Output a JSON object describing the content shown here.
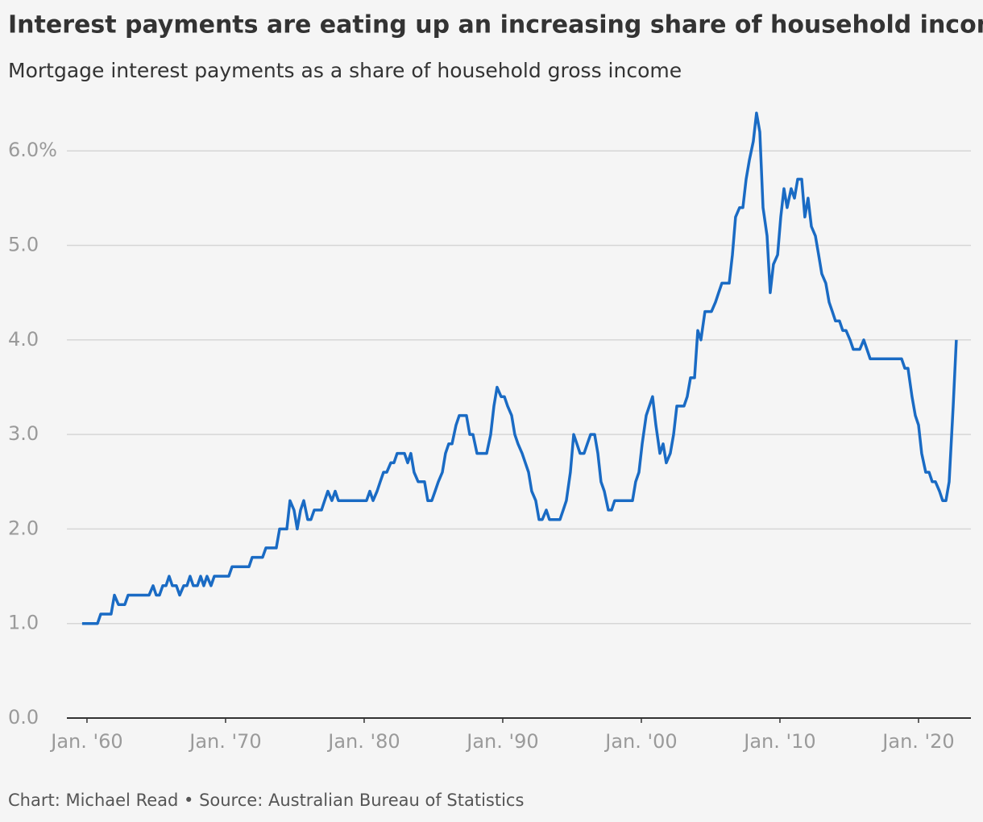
{
  "chart_data": {
    "type": "line",
    "title": "Interest payments are eating up an increasing share of household income",
    "subtitle": "Mortgage interest payments as a share of household gross income",
    "source": "Chart: Michael Read • Source: Australian Bureau of Statistics",
    "color": "#1a6bc4",
    "grid": true,
    "xlim": [
      1958.55,
      2023.78
    ],
    "ylim": [
      0,
      6.5
    ],
    "xticks": [
      {
        "value": 1960,
        "label": "Jan. '60"
      },
      {
        "value": 1970,
        "label": "Jan. '70"
      },
      {
        "value": 1980,
        "label": "Jan. '80"
      },
      {
        "value": 1990,
        "label": "Jan. '90"
      },
      {
        "value": 2000,
        "label": "Jan. '00"
      },
      {
        "value": 2010,
        "label": "Jan. '10"
      },
      {
        "value": 2020,
        "label": "Jan. '20"
      }
    ],
    "yticks": [
      {
        "value": 0,
        "label": "0.0"
      },
      {
        "value": 1,
        "label": "1.0"
      },
      {
        "value": 2,
        "label": "2.0"
      },
      {
        "value": 3,
        "label": "3.0"
      },
      {
        "value": 4,
        "label": "4.0"
      },
      {
        "value": 5,
        "label": "5.0"
      },
      {
        "value": 6,
        "label": "6.0%"
      }
    ],
    "x": [
      1959.65,
      1960.76,
      1960.99,
      1961.74,
      1961.98,
      1962.27,
      1962.73,
      1962.97,
      1964.48,
      1964.77,
      1965.0,
      1965.23,
      1965.47,
      1965.7,
      1965.93,
      1966.16,
      1966.45,
      1966.69,
      1966.98,
      1967.21,
      1967.44,
      1967.67,
      1967.97,
      1968.2,
      1968.43,
      1968.66,
      1968.95,
      1969.19,
      1970.23,
      1970.47,
      1971.69,
      1971.92,
      1972.67,
      1972.91,
      1973.66,
      1973.9,
      1974.42,
      1974.65,
      1974.94,
      1975.17,
      1975.41,
      1975.64,
      1975.93,
      1976.16,
      1976.4,
      1976.92,
      1977.15,
      1977.38,
      1977.67,
      1977.91,
      1978.14,
      1980.17,
      1980.41,
      1980.64,
      1980.93,
      1981.16,
      1981.4,
      1981.63,
      1981.92,
      1982.15,
      1982.38,
      1982.91,
      1983.14,
      1983.37,
      1983.6,
      1983.9,
      1984.36,
      1984.59,
      1984.88,
      1985.12,
      1985.35,
      1985.64,
      1985.87,
      1986.1,
      1986.34,
      1986.63,
      1986.86,
      1987.38,
      1987.62,
      1987.85,
      1988.14,
      1988.84,
      1989.13,
      1989.36,
      1989.59,
      1989.88,
      1990.12,
      1990.35,
      1990.64,
      1990.87,
      1991.1,
      1991.4,
      1991.63,
      1991.86,
      1992.09,
      1992.38,
      1992.62,
      1992.85,
      1993.14,
      1993.37,
      1994.13,
      1994.36,
      1994.59,
      1994.88,
      1995.12,
      1995.35,
      1995.58,
      1995.87,
      1996.1,
      1996.34,
      1996.63,
      1996.86,
      1997.09,
      1997.33,
      1997.62,
      1997.85,
      1998.08,
      1999.36,
      1999.59,
      1999.83,
      2000.06,
      2000.35,
      2000.58,
      2000.81,
      2001.05,
      2001.34,
      2001.57,
      2001.8,
      2002.09,
      2002.33,
      2002.56,
      2003.08,
      2003.31,
      2003.55,
      2003.84,
      2004.07,
      2004.3,
      2004.59,
      2005.06,
      2005.35,
      2005.58,
      2005.81,
      2006.34,
      2006.57,
      2006.8,
      2007.09,
      2007.33,
      2007.56,
      2007.79,
      2008.08,
      2008.31,
      2008.55,
      2008.78,
      2009.07,
      2009.3,
      2009.53,
      2009.83,
      2010.06,
      2010.29,
      2010.52,
      2010.81,
      2011.05,
      2011.28,
      2011.57,
      2011.8,
      2012.03,
      2012.27,
      2012.56,
      2012.79,
      2013.02,
      2013.31,
      2013.55,
      2013.78,
      2014.01,
      2014.3,
      2014.53,
      2014.77,
      2015.06,
      2015.29,
      2015.76,
      2016.05,
      2016.28,
      2016.51,
      2018.78,
      2019.01,
      2019.24,
      2019.53,
      2019.77,
      2020.0,
      2020.23,
      2020.52,
      2020.76,
      2020.99,
      2021.22,
      2021.51,
      2021.74,
      2021.98,
      2022.21,
      2022.5,
      2022.73
    ],
    "values": [
      1.0,
      1.0,
      1.1,
      1.1,
      1.3,
      1.2,
      1.2,
      1.3,
      1.3,
      1.4,
      1.3,
      1.3,
      1.4,
      1.4,
      1.5,
      1.4,
      1.4,
      1.3,
      1.4,
      1.4,
      1.5,
      1.4,
      1.4,
      1.5,
      1.4,
      1.5,
      1.4,
      1.5,
      1.5,
      1.6,
      1.6,
      1.7,
      1.7,
      1.8,
      1.8,
      2.0,
      2.0,
      2.3,
      2.2,
      2.0,
      2.2,
      2.3,
      2.1,
      2.1,
      2.2,
      2.2,
      2.3,
      2.4,
      2.3,
      2.4,
      2.3,
      2.3,
      2.4,
      2.3,
      2.4,
      2.5,
      2.6,
      2.6,
      2.7,
      2.7,
      2.8,
      2.8,
      2.7,
      2.8,
      2.6,
      2.5,
      2.5,
      2.3,
      2.3,
      2.4,
      2.5,
      2.6,
      2.8,
      2.9,
      2.9,
      3.1,
      3.2,
      3.2,
      3.0,
      3.0,
      2.8,
      2.8,
      3.0,
      3.3,
      3.5,
      3.4,
      3.4,
      3.3,
      3.2,
      3.0,
      2.9,
      2.8,
      2.7,
      2.6,
      2.4,
      2.3,
      2.1,
      2.1,
      2.2,
      2.1,
      2.1,
      2.2,
      2.3,
      2.6,
      3.0,
      2.9,
      2.8,
      2.8,
      2.9,
      3.0,
      3.0,
      2.8,
      2.5,
      2.4,
      2.2,
      2.2,
      2.3,
      2.3,
      2.5,
      2.6,
      2.9,
      3.2,
      3.3,
      3.4,
      3.1,
      2.8,
      2.9,
      2.7,
      2.8,
      3.0,
      3.3,
      3.3,
      3.4,
      3.6,
      3.6,
      4.1,
      4.0,
      4.3,
      4.3,
      4.4,
      4.5,
      4.6,
      4.6,
      4.9,
      5.3,
      5.4,
      5.4,
      5.7,
      5.9,
      6.1,
      6.4,
      6.2,
      5.4,
      5.1,
      4.5,
      4.8,
      4.9,
      5.3,
      5.6,
      5.4,
      5.6,
      5.5,
      5.7,
      5.7,
      5.3,
      5.5,
      5.2,
      5.1,
      4.9,
      4.7,
      4.6,
      4.4,
      4.3,
      4.2,
      4.2,
      4.1,
      4.1,
      4.0,
      3.9,
      3.9,
      4.0,
      3.9,
      3.8,
      3.8,
      3.7,
      3.7,
      3.4,
      3.2,
      3.1,
      2.8,
      2.6,
      2.6,
      2.5,
      2.5,
      2.4,
      2.3,
      2.3,
      2.5,
      3.3,
      4.0
    ]
  }
}
